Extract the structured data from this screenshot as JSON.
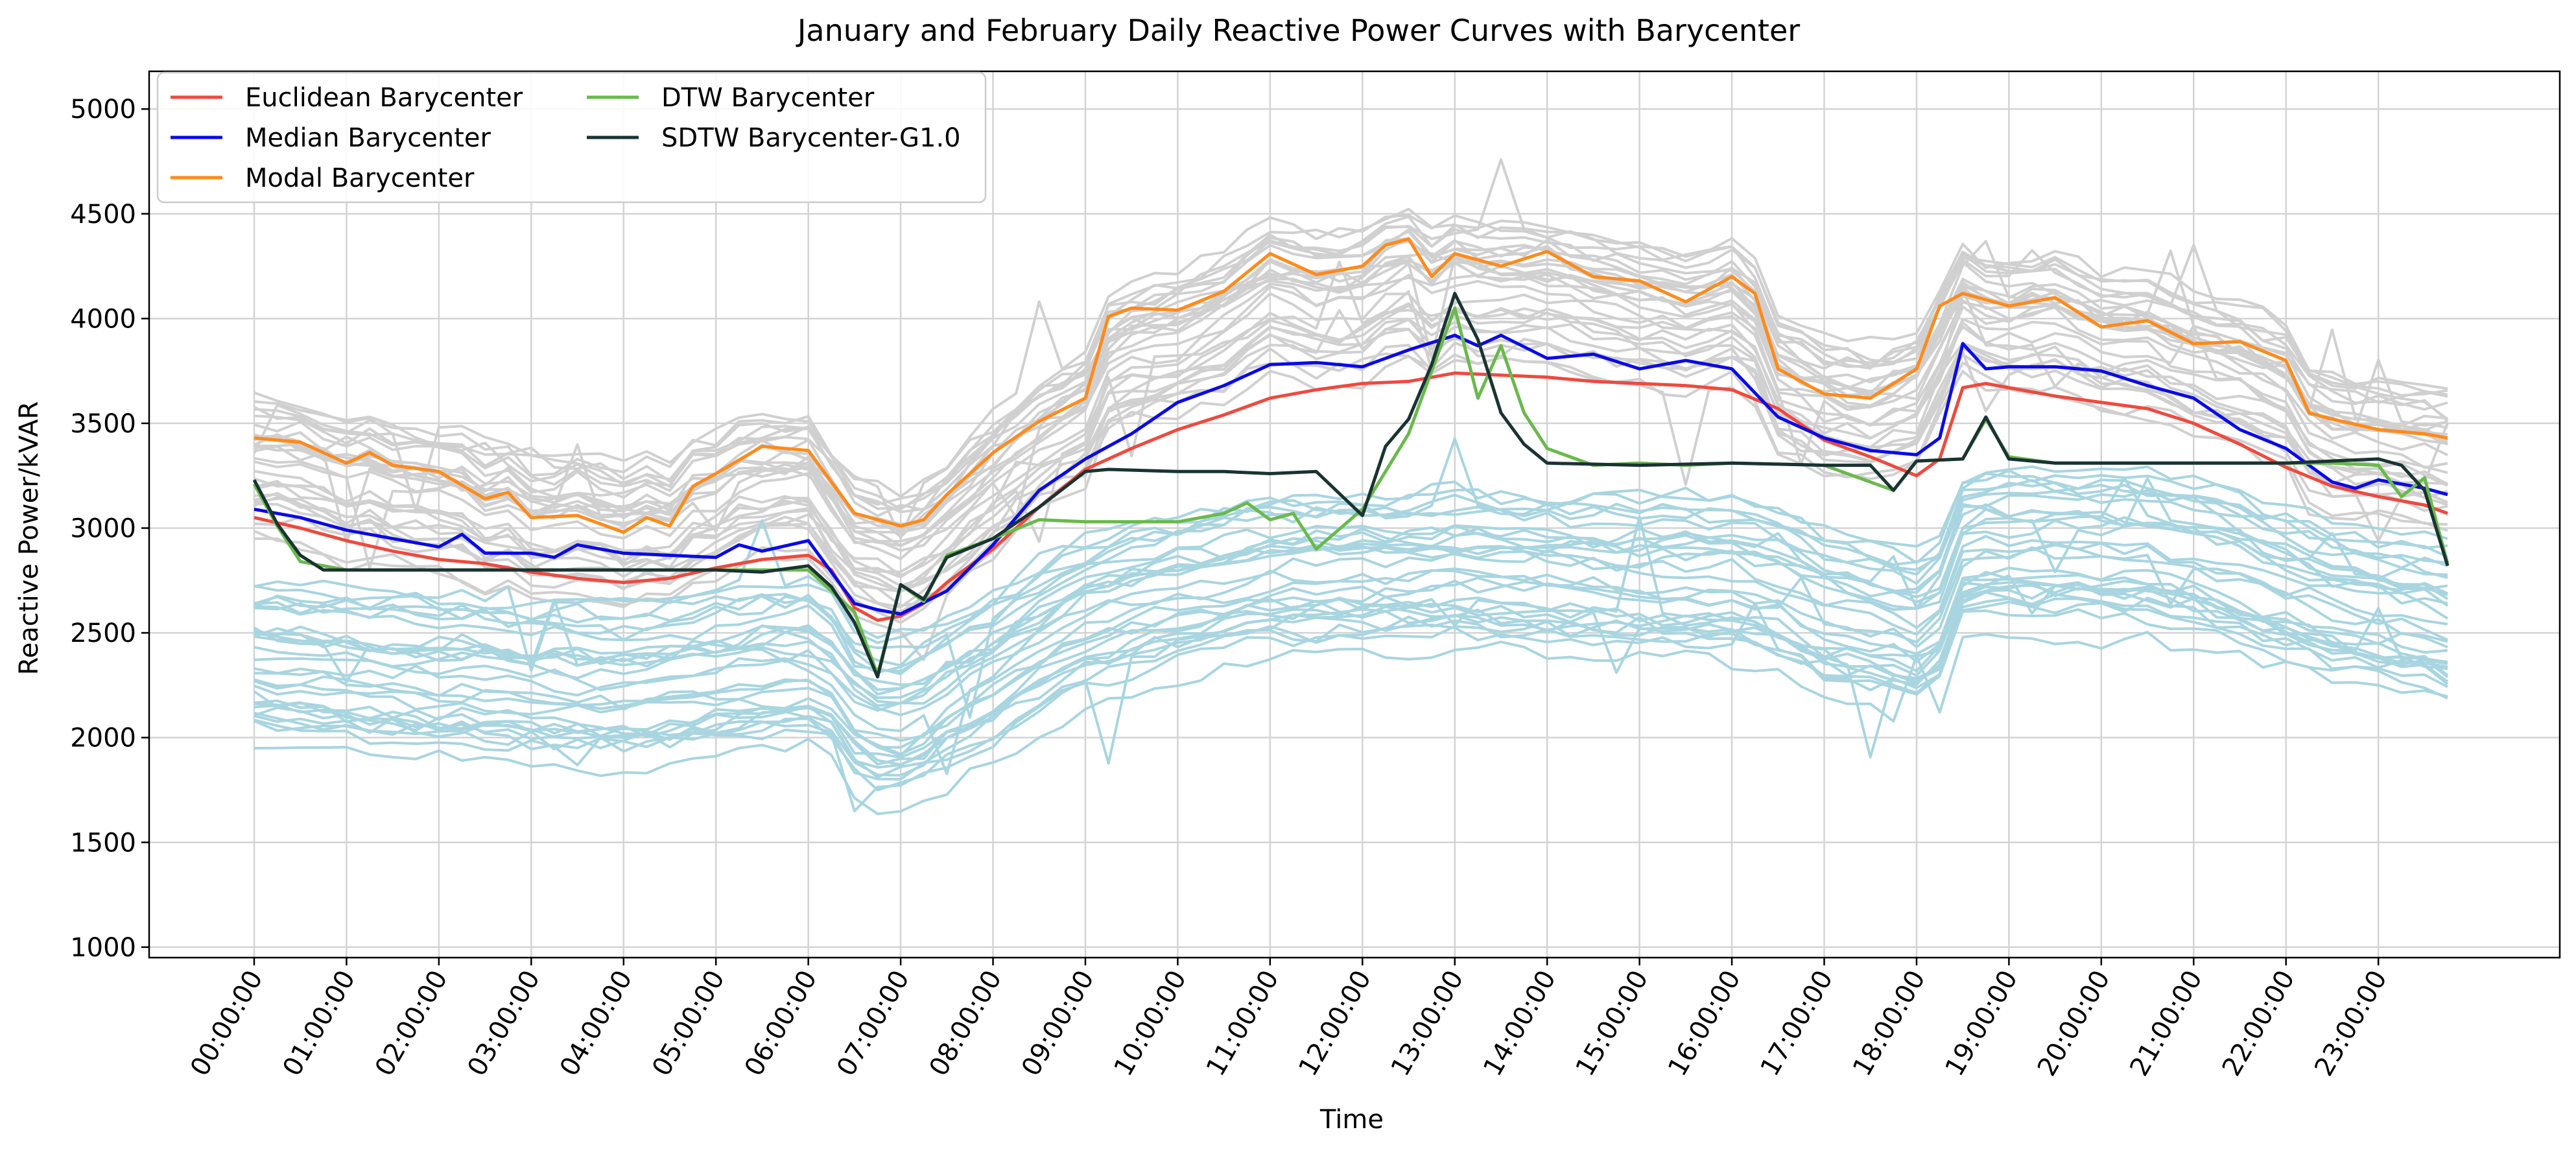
{
  "chart_data": {
    "type": "line",
    "title": "January and February Daily Reactive Power Curves with Barycenter",
    "xlabel": "Time",
    "ylabel": "Reactive Power/kVAR",
    "ylim": [
      950,
      5180
    ],
    "yticks": [
      1000,
      1500,
      2000,
      2500,
      3000,
      3500,
      4000,
      4500,
      5000
    ],
    "xticks": [
      "00:00:00",
      "01:00:00",
      "02:00:00",
      "03:00:00",
      "04:00:00",
      "05:00:00",
      "06:00:00",
      "07:00:00",
      "08:00:00",
      "09:00:00",
      "10:00:00",
      "11:00:00",
      "12:00:00",
      "13:00:00",
      "14:00:00",
      "15:00:00",
      "16:00:00",
      "17:00:00",
      "18:00:00",
      "19:00:00",
      "20:00:00",
      "21:00:00",
      "22:00:00",
      "23:00:00"
    ],
    "x_hours": [
      0,
      23.75
    ],
    "grid": true,
    "legend_position": "upper-left",
    "series": [
      {
        "name": "Euclidean Barycenter",
        "color": "#f0493e",
        "values": [
          [
            0,
            3050
          ],
          [
            0.5,
            3000
          ],
          [
            1,
            2940
          ],
          [
            1.5,
            2890
          ],
          [
            2,
            2850
          ],
          [
            2.5,
            2830
          ],
          [
            3,
            2790
          ],
          [
            3.5,
            2760
          ],
          [
            4,
            2740
          ],
          [
            4.5,
            2760
          ],
          [
            5,
            2810
          ],
          [
            5.5,
            2850
          ],
          [
            6,
            2870
          ],
          [
            6.25,
            2800
          ],
          [
            6.5,
            2620
          ],
          [
            6.75,
            2560
          ],
          [
            7,
            2580
          ],
          [
            7.25,
            2640
          ],
          [
            7.5,
            2740
          ],
          [
            8,
            2900
          ],
          [
            8.5,
            3100
          ],
          [
            9,
            3280
          ],
          [
            9.5,
            3380
          ],
          [
            10,
            3470
          ],
          [
            10.5,
            3540
          ],
          [
            11,
            3620
          ],
          [
            11.5,
            3660
          ],
          [
            12,
            3690
          ],
          [
            12.5,
            3700
          ],
          [
            13,
            3740
          ],
          [
            13.5,
            3730
          ],
          [
            14,
            3720
          ],
          [
            14.5,
            3700
          ],
          [
            15,
            3690
          ],
          [
            15.5,
            3680
          ],
          [
            16,
            3660
          ],
          [
            16.5,
            3570
          ],
          [
            17,
            3420
          ],
          [
            17.5,
            3340
          ],
          [
            18,
            3250
          ],
          [
            18.25,
            3330
          ],
          [
            18.5,
            3670
          ],
          [
            18.75,
            3690
          ],
          [
            19,
            3670
          ],
          [
            19.5,
            3630
          ],
          [
            20,
            3600
          ],
          [
            20.5,
            3570
          ],
          [
            21,
            3500
          ],
          [
            21.5,
            3400
          ],
          [
            22,
            3290
          ],
          [
            22.5,
            3200
          ],
          [
            23,
            3150
          ],
          [
            23.5,
            3110
          ],
          [
            23.75,
            3070
          ]
        ]
      },
      {
        "name": "Median Barycenter",
        "color": "#0a0ae8",
        "values": [
          [
            0,
            3090
          ],
          [
            0.5,
            3050
          ],
          [
            1,
            2990
          ],
          [
            1.5,
            2950
          ],
          [
            2,
            2910
          ],
          [
            2.25,
            2970
          ],
          [
            2.5,
            2880
          ],
          [
            3,
            2880
          ],
          [
            3.25,
            2860
          ],
          [
            3.5,
            2920
          ],
          [
            4,
            2880
          ],
          [
            4.5,
            2870
          ],
          [
            5,
            2860
          ],
          [
            5.25,
            2920
          ],
          [
            5.5,
            2890
          ],
          [
            6,
            2940
          ],
          [
            6.25,
            2790
          ],
          [
            6.5,
            2640
          ],
          [
            6.75,
            2610
          ],
          [
            7,
            2590
          ],
          [
            7.5,
            2700
          ],
          [
            8,
            2920
          ],
          [
            8.5,
            3180
          ],
          [
            9,
            3330
          ],
          [
            9.5,
            3450
          ],
          [
            10,
            3600
          ],
          [
            10.5,
            3680
          ],
          [
            11,
            3780
          ],
          [
            11.5,
            3790
          ],
          [
            12,
            3770
          ],
          [
            12.5,
            3850
          ],
          [
            13,
            3920
          ],
          [
            13.25,
            3870
          ],
          [
            13.5,
            3920
          ],
          [
            14,
            3810
          ],
          [
            14.5,
            3830
          ],
          [
            15,
            3760
          ],
          [
            15.5,
            3800
          ],
          [
            16,
            3760
          ],
          [
            16.5,
            3530
          ],
          [
            17,
            3430
          ],
          [
            17.5,
            3370
          ],
          [
            18,
            3350
          ],
          [
            18.25,
            3430
          ],
          [
            18.5,
            3880
          ],
          [
            18.75,
            3760
          ],
          [
            19,
            3770
          ],
          [
            19.5,
            3770
          ],
          [
            20,
            3750
          ],
          [
            20.5,
            3680
          ],
          [
            21,
            3620
          ],
          [
            21.5,
            3470
          ],
          [
            22,
            3380
          ],
          [
            22.5,
            3220
          ],
          [
            22.75,
            3190
          ],
          [
            23,
            3230
          ],
          [
            23.5,
            3190
          ],
          [
            23.75,
            3160
          ]
        ]
      },
      {
        "name": "Modal Barycenter",
        "color": "#ff8a1a",
        "values": [
          [
            0,
            3430
          ],
          [
            0.5,
            3410
          ],
          [
            1,
            3310
          ],
          [
            1.25,
            3360
          ],
          [
            1.5,
            3300
          ],
          [
            2,
            3270
          ],
          [
            2.5,
            3140
          ],
          [
            2.75,
            3170
          ],
          [
            3,
            3050
          ],
          [
            3.5,
            3060
          ],
          [
            4,
            2980
          ],
          [
            4.25,
            3050
          ],
          [
            4.5,
            3010
          ],
          [
            4.75,
            3200
          ],
          [
            5,
            3260
          ],
          [
            5.5,
            3390
          ],
          [
            6,
            3370
          ],
          [
            6.25,
            3220
          ],
          [
            6.5,
            3070
          ],
          [
            7,
            3010
          ],
          [
            7.25,
            3040
          ],
          [
            7.5,
            3160
          ],
          [
            8,
            3360
          ],
          [
            8.5,
            3510
          ],
          [
            9,
            3620
          ],
          [
            9.25,
            4010
          ],
          [
            9.5,
            4050
          ],
          [
            10,
            4040
          ],
          [
            10.5,
            4130
          ],
          [
            11,
            4310
          ],
          [
            11.5,
            4210
          ],
          [
            12,
            4250
          ],
          [
            12.25,
            4350
          ],
          [
            12.5,
            4380
          ],
          [
            12.75,
            4200
          ],
          [
            13,
            4310
          ],
          [
            13.5,
            4250
          ],
          [
            14,
            4320
          ],
          [
            14.5,
            4200
          ],
          [
            15,
            4180
          ],
          [
            15.5,
            4080
          ],
          [
            16,
            4200
          ],
          [
            16.25,
            4120
          ],
          [
            16.5,
            3760
          ],
          [
            17,
            3640
          ],
          [
            17.5,
            3620
          ],
          [
            18,
            3760
          ],
          [
            18.25,
            4060
          ],
          [
            18.5,
            4120
          ],
          [
            19,
            4060
          ],
          [
            19.5,
            4100
          ],
          [
            20,
            3960
          ],
          [
            20.5,
            3990
          ],
          [
            21,
            3880
          ],
          [
            21.5,
            3890
          ],
          [
            22,
            3800
          ],
          [
            22.25,
            3550
          ],
          [
            22.5,
            3520
          ],
          [
            23,
            3470
          ],
          [
            23.5,
            3450
          ],
          [
            23.75,
            3430
          ]
        ]
      },
      {
        "name": "DTW Barycenter",
        "color": "#6ab94c",
        "values": [
          [
            0,
            3210
          ],
          [
            0.25,
            3010
          ],
          [
            0.5,
            2840
          ],
          [
            1,
            2800
          ],
          [
            2,
            2800
          ],
          [
            3,
            2800
          ],
          [
            4,
            2800
          ],
          [
            5,
            2800
          ],
          [
            6,
            2800
          ],
          [
            6.5,
            2600
          ],
          [
            6.75,
            2300
          ],
          [
            7,
            2730
          ],
          [
            7.25,
            2650
          ],
          [
            7.5,
            2870
          ],
          [
            8,
            2950
          ],
          [
            8.5,
            3040
          ],
          [
            9,
            3030
          ],
          [
            9.5,
            3030
          ],
          [
            10,
            3030
          ],
          [
            10.5,
            3070
          ],
          [
            10.75,
            3120
          ],
          [
            11,
            3040
          ],
          [
            11.25,
            3070
          ],
          [
            11.5,
            2900
          ],
          [
            12,
            3090
          ],
          [
            12.5,
            3450
          ],
          [
            13,
            4050
          ],
          [
            13.25,
            3620
          ],
          [
            13.5,
            3870
          ],
          [
            13.75,
            3550
          ],
          [
            14,
            3380
          ],
          [
            14.5,
            3300
          ],
          [
            15,
            3310
          ],
          [
            15.5,
            3300
          ],
          [
            16,
            3310
          ],
          [
            17,
            3300
          ],
          [
            17.75,
            3180
          ],
          [
            18,
            3320
          ],
          [
            18.5,
            3330
          ],
          [
            18.75,
            3520
          ],
          [
            19,
            3340
          ],
          [
            19.5,
            3310
          ],
          [
            20,
            3310
          ],
          [
            21,
            3310
          ],
          [
            22,
            3310
          ],
          [
            22.5,
            3310
          ],
          [
            23,
            3300
          ],
          [
            23.25,
            3150
          ],
          [
            23.5,
            3240
          ],
          [
            23.75,
            2830
          ]
        ]
      },
      {
        "name": "SDTW Barycenter-G1.0",
        "color": "#1a3333",
        "values": [
          [
            0,
            3230
          ],
          [
            0.25,
            3020
          ],
          [
            0.5,
            2870
          ],
          [
            0.75,
            2800
          ],
          [
            1,
            2800
          ],
          [
            2,
            2800
          ],
          [
            3,
            2800
          ],
          [
            4,
            2800
          ],
          [
            5,
            2800
          ],
          [
            5.5,
            2790
          ],
          [
            6,
            2820
          ],
          [
            6.25,
            2720
          ],
          [
            6.5,
            2550
          ],
          [
            6.75,
            2290
          ],
          [
            7,
            2730
          ],
          [
            7.25,
            2660
          ],
          [
            7.5,
            2860
          ],
          [
            8,
            2950
          ],
          [
            8.5,
            3100
          ],
          [
            9,
            3270
          ],
          [
            9.25,
            3280
          ],
          [
            10,
            3270
          ],
          [
            10.5,
            3270
          ],
          [
            11,
            3260
          ],
          [
            11.5,
            3270
          ],
          [
            12,
            3060
          ],
          [
            12.25,
            3390
          ],
          [
            12.5,
            3520
          ],
          [
            12.75,
            3780
          ],
          [
            13,
            4120
          ],
          [
            13.25,
            3900
          ],
          [
            13.5,
            3550
          ],
          [
            13.75,
            3400
          ],
          [
            14,
            3310
          ],
          [
            15,
            3300
          ],
          [
            16,
            3310
          ],
          [
            17,
            3300
          ],
          [
            17.5,
            3300
          ],
          [
            17.75,
            3180
          ],
          [
            18,
            3320
          ],
          [
            18.5,
            3330
          ],
          [
            18.75,
            3530
          ],
          [
            19,
            3330
          ],
          [
            19.5,
            3310
          ],
          [
            20,
            3310
          ],
          [
            21,
            3310
          ],
          [
            22,
            3310
          ],
          [
            23,
            3330
          ],
          [
            23.25,
            3300
          ],
          [
            23.5,
            3180
          ],
          [
            23.75,
            2820
          ]
        ]
      }
    ]
  }
}
